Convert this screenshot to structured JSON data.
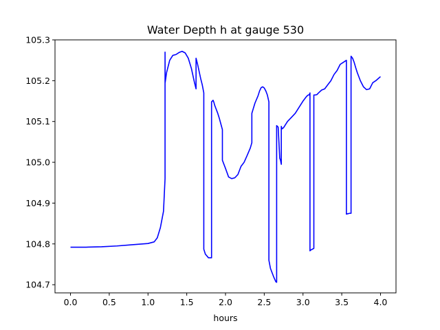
{
  "chart_data": {
    "type": "line",
    "title": "Water Depth h at gauge 530",
    "xlabel": "hours",
    "ylabel": "",
    "xlim": [
      -0.2,
      4.2
    ],
    "ylim": [
      104.68,
      105.3
    ],
    "xticks": [
      0.0,
      0.5,
      1.0,
      1.5,
      2.0,
      2.5,
      3.0,
      3.5,
      4.0
    ],
    "xtick_labels": [
      "0.0",
      "0.5",
      "1.0",
      "1.5",
      "2.0",
      "2.5",
      "3.0",
      "3.5",
      "4.0"
    ],
    "yticks": [
      104.7,
      104.8,
      104.9,
      105.0,
      105.1,
      105.2,
      105.3
    ],
    "ytick_labels": [
      "104.7",
      "104.8",
      "104.9",
      "105.0",
      "105.1",
      "105.2",
      "105.3"
    ],
    "grid": false,
    "colors": {
      "series": "#0000ff"
    },
    "series": [
      {
        "name": "",
        "x": [
          0.0,
          0.2,
          0.4,
          0.6,
          0.8,
          1.0,
          1.08,
          1.12,
          1.16,
          1.2,
          1.22,
          1.22,
          1.221,
          1.24,
          1.28,
          1.32,
          1.36,
          1.4,
          1.44,
          1.48,
          1.52,
          1.56,
          1.6,
          1.62,
          1.62,
          1.64,
          1.68,
          1.7,
          1.72,
          1.72,
          1.74,
          1.78,
          1.82,
          1.82,
          1.84,
          1.85,
          1.86,
          1.88,
          1.9,
          1.92,
          1.94,
          1.96,
          1.96,
          2.0,
          2.04,
          2.08,
          2.12,
          2.16,
          2.2,
          2.24,
          2.28,
          2.32,
          2.34,
          2.34,
          2.38,
          2.42,
          2.44,
          2.46,
          2.48,
          2.5,
          2.52,
          2.54,
          2.56,
          2.56,
          2.58,
          2.62,
          2.65,
          2.66,
          2.66,
          2.68,
          2.68,
          2.7,
          2.71,
          2.72,
          2.72,
          2.73,
          2.75,
          2.8,
          2.85,
          2.9,
          2.95,
          3.0,
          3.04,
          3.06,
          3.07,
          3.08,
          3.09,
          3.09,
          3.1,
          3.12,
          3.14,
          3.14,
          3.16,
          3.18,
          3.2,
          3.24,
          3.28,
          3.32,
          3.36,
          3.4,
          3.44,
          3.48,
          3.52,
          3.56,
          3.56,
          3.6,
          3.62,
          3.62,
          3.64,
          3.66,
          3.68,
          3.7,
          3.74,
          3.78,
          3.82,
          3.86,
          3.9,
          3.94,
          3.97,
          4.0
        ],
        "y": [
          104.792,
          104.792,
          104.793,
          104.795,
          104.798,
          104.801,
          104.805,
          104.815,
          104.84,
          104.88,
          104.96,
          105.27,
          105.195,
          105.22,
          105.25,
          105.262,
          105.264,
          105.269,
          105.272,
          105.268,
          105.255,
          105.23,
          105.195,
          105.18,
          105.255,
          105.24,
          105.205,
          105.19,
          105.17,
          104.787,
          104.775,
          104.766,
          104.766,
          105.148,
          105.152,
          105.147,
          105.14,
          105.13,
          105.12,
          105.108,
          105.094,
          105.08,
          105.005,
          104.985,
          104.964,
          104.96,
          104.962,
          104.97,
          104.99,
          105.0,
          105.017,
          105.035,
          105.048,
          105.12,
          105.145,
          105.163,
          105.175,
          105.183,
          105.185,
          105.182,
          105.175,
          105.165,
          105.148,
          104.76,
          104.74,
          104.72,
          104.707,
          104.706,
          105.09,
          105.086,
          105.085,
          105.01,
          105.005,
          104.995,
          105.088,
          105.082,
          105.085,
          105.1,
          105.11,
          105.12,
          105.135,
          105.15,
          105.16,
          105.164,
          105.165,
          105.165,
          105.17,
          104.783,
          104.785,
          104.787,
          104.789,
          105.165,
          105.165,
          105.166,
          105.17,
          105.177,
          105.18,
          105.19,
          105.2,
          105.215,
          105.225,
          105.24,
          105.245,
          105.25,
          104.873,
          104.875,
          104.875,
          105.26,
          105.255,
          105.245,
          105.232,
          105.22,
          105.2,
          105.185,
          105.178,
          105.18,
          105.195,
          105.2,
          105.205,
          105.21
        ]
      }
    ]
  }
}
